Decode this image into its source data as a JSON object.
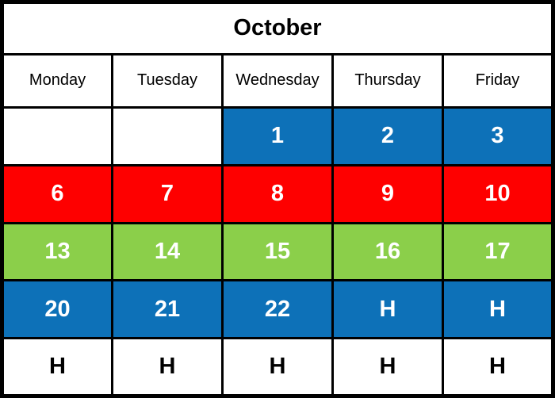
{
  "calendar": {
    "title": "October",
    "day_headers": [
      "Monday",
      "Tuesday",
      "Wednesday",
      "Thursday",
      "Friday"
    ],
    "colors": {
      "blue": "#0d71b8",
      "red": "#fe0000",
      "green": "#8bcf4a",
      "white": "#ffffff",
      "border": "#000000",
      "text_on_color": "#ffffff",
      "text_on_white": "#000000"
    },
    "holiday_symbol": "H",
    "weeks": [
      {
        "cells": [
          {
            "text": "",
            "color": "white"
          },
          {
            "text": "",
            "color": "white"
          },
          {
            "text": "1",
            "color": "blue"
          },
          {
            "text": "2",
            "color": "blue"
          },
          {
            "text": "3",
            "color": "blue"
          }
        ]
      },
      {
        "cells": [
          {
            "text": "6",
            "color": "red"
          },
          {
            "text": "7",
            "color": "red"
          },
          {
            "text": "8",
            "color": "red"
          },
          {
            "text": "9",
            "color": "red"
          },
          {
            "text": "10",
            "color": "red"
          }
        ]
      },
      {
        "cells": [
          {
            "text": "13",
            "color": "green"
          },
          {
            "text": "14",
            "color": "green"
          },
          {
            "text": "15",
            "color": "green"
          },
          {
            "text": "16",
            "color": "green"
          },
          {
            "text": "17",
            "color": "green"
          }
        ]
      },
      {
        "cells": [
          {
            "text": "20",
            "color": "blue"
          },
          {
            "text": "21",
            "color": "blue"
          },
          {
            "text": "22",
            "color": "blue"
          },
          {
            "text": "H",
            "color": "blue"
          },
          {
            "text": "H",
            "color": "blue"
          }
        ]
      },
      {
        "cells": [
          {
            "text": "H",
            "color": "white"
          },
          {
            "text": "H",
            "color": "white"
          },
          {
            "text": "H",
            "color": "white"
          },
          {
            "text": "H",
            "color": "white"
          },
          {
            "text": "H",
            "color": "white"
          }
        ]
      }
    ]
  }
}
